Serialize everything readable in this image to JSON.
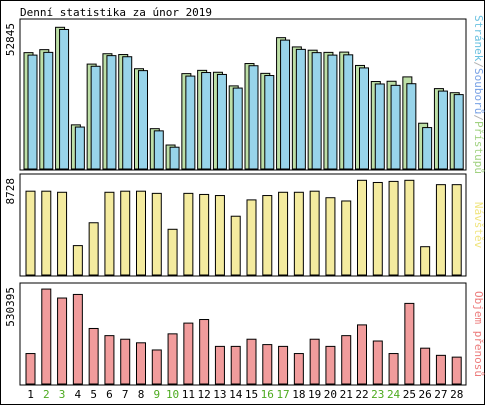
{
  "chart_data": {
    "title": "Denní statistika za únor 2019",
    "type": "bar",
    "days": [
      "1",
      "2",
      "3",
      "4",
      "5",
      "6",
      "7",
      "8",
      "9",
      "10",
      "11",
      "12",
      "13",
      "14",
      "15",
      "16",
      "17",
      "18",
      "19",
      "20",
      "21",
      "22",
      "23",
      "24",
      "25",
      "26",
      "27",
      "28"
    ],
    "weekend_days": [
      "2",
      "3",
      "9",
      "10",
      "16",
      "17",
      "23",
      "24"
    ],
    "colors": {
      "hits": "#6db83c",
      "files": "#2f6fd6",
      "pages": "#1a9fd0",
      "visits": "#e6d22a",
      "volume": "#e02424",
      "weekday_label": "#000000",
      "weekend_label": "#4caa1e",
      "border": "#000000",
      "background": "#ffffff"
    },
    "panels": [
      {
        "id": "access",
        "max_label": "52845",
        "ymax": 52845,
        "legend": {
          "pages": "Stránek",
          "sep1": "/",
          "files": "Souborů",
          "sep2": "/",
          "hits": "Přístupů"
        },
        "series": [
          {
            "name": "Přístupů",
            "role": "hits",
            "values": [
              42700,
              43800,
              52000,
              16200,
              38500,
              42300,
              42000,
              36800,
              14800,
              8800,
              35000,
              36200,
              35500,
              30500,
              38700,
              35100,
              48200,
              44800,
              43600,
              42800,
              42900,
              38000,
              32100,
              32200,
              33800,
              16800,
              29500,
              28000
            ]
          },
          {
            "name": "Stránek",
            "role": "pages",
            "values": [
              41800,
              42800,
              51200,
              15400,
              37700,
              41600,
              41200,
              36100,
              14000,
              8000,
              34100,
              35400,
              34700,
              29700,
              37900,
              34300,
              47300,
              43900,
              42700,
              41800,
              41900,
              37100,
              31200,
              30700,
              31300,
              15200,
              28600,
              27300
            ]
          }
        ]
      },
      {
        "id": "visits",
        "max_label": "8728",
        "ymax": 8728,
        "legend": {
          "label": "Návštěv"
        },
        "series": [
          {
            "name": "Návštěv",
            "role": "visits",
            "values": [
              7700,
              7700,
              7600,
              2700,
              4800,
              7600,
              7700,
              7700,
              7500,
              4200,
              7500,
              7400,
              7300,
              5400,
              6900,
              7300,
              7600,
              7600,
              7700,
              7100,
              6800,
              8700,
              8500,
              8600,
              8700,
              2600,
              8300,
              8300
            ]
          }
        ]
      },
      {
        "id": "volume",
        "max_label": "530395",
        "ymax": 530395,
        "legend": {
          "label": "Objem přenosů"
        },
        "series": [
          {
            "name": "Objem přenosů",
            "role": "volume",
            "values": [
              170000,
              530000,
              480000,
              500000,
              310000,
              270000,
              250000,
              230000,
              190000,
              280000,
              340000,
              360000,
              210000,
              210000,
              250000,
              220000,
              210000,
              170000,
              250000,
              210000,
              270000,
              330000,
              240000,
              170000,
              450000,
              200000,
              160000,
              150000
            ]
          }
        ]
      }
    ]
  }
}
